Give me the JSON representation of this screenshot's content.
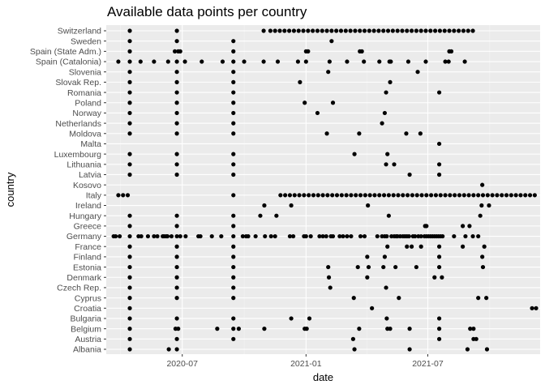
{
  "chart_data": {
    "type": "scatter",
    "title": "Available data points per country",
    "xlabel": "date",
    "ylabel": "country",
    "x_ticks": [
      "2020-07-01",
      "2021-01-01",
      "2021-07-01"
    ],
    "x_tick_labels": [
      "2020-07",
      "2021-01",
      "2021-07"
    ],
    "xlim": [
      "2020-03-10",
      "2021-12-15"
    ],
    "grid": true,
    "legend": "none",
    "categories": [
      "Switzerland",
      "Sweden",
      "Spain (State Adm.)",
      "Spain (Catalonia)",
      "Slovenia",
      "Slovak Rep.",
      "Romania",
      "Poland",
      "Norway",
      "Netherlands",
      "Moldova",
      "Malta",
      "Luxembourg",
      "Lithuania",
      "Latvia",
      "Kosovo",
      "Italy",
      "Ireland",
      "Hungary",
      "Greece",
      "Germany",
      "France",
      "Finland",
      "Estonia",
      "Denmark",
      "Czech Rep.",
      "Cyprus",
      "Croatia",
      "Bulgaria",
      "Belgium",
      "Austria",
      "Albania"
    ],
    "points": {
      "Switzerland": {
        "dates": [
          "2020-04-14",
          "2020-06-23",
          "2020-10-30"
        ],
        "weekly": {
          "start": "2020-11-09",
          "end": "2021-09-06"
        }
      },
      "Sweden": {
        "dates": [
          "2020-04-14",
          "2020-06-23",
          "2020-09-15",
          "2021-02-08"
        ]
      },
      "Spain (State Adm.)": {
        "dates": [
          "2020-04-14",
          "2020-06-20",
          "2020-06-25",
          "2020-06-28",
          "2020-09-15",
          "2021-01-01",
          "2021-01-04",
          "2021-03-22",
          "2021-03-25",
          "2021-08-02",
          "2021-08-05"
        ]
      },
      "Spain (Catalonia)": {
        "dates": [
          "2020-03-28",
          "2020-04-14",
          "2020-04-30",
          "2020-05-20",
          "2020-06-10",
          "2020-06-23",
          "2020-07-05",
          "2020-07-30",
          "2020-08-30",
          "2020-09-15",
          "2020-10-01",
          "2020-10-30",
          "2020-11-20",
          "2020-12-20",
          "2021-01-01",
          "2021-02-05",
          "2021-03-03",
          "2021-03-28",
          "2021-04-20",
          "2021-05-05",
          "2021-05-07",
          "2021-06-02",
          "2021-06-28",
          "2021-07-27",
          "2021-08-01",
          "2021-08-25"
        ]
      },
      "Slovenia": {
        "dates": [
          "2020-04-14",
          "2020-06-23",
          "2020-09-15",
          "2021-02-03",
          "2021-06-16"
        ]
      },
      "Slovak Rep.": {
        "dates": [
          "2020-04-14",
          "2020-06-23",
          "2020-09-15",
          "2020-12-23",
          "2021-05-06"
        ]
      },
      "Romania": {
        "dates": [
          "2020-04-14",
          "2020-06-23",
          "2020-09-15",
          "2021-04-30",
          "2021-07-18"
        ]
      },
      "Poland": {
        "dates": [
          "2020-04-14",
          "2020-06-23",
          "2020-09-15",
          "2020-12-30",
          "2021-02-10"
        ]
      },
      "Norway": {
        "dates": [
          "2020-04-14",
          "2020-06-23",
          "2020-09-15",
          "2021-01-18",
          "2021-04-28"
        ]
      },
      "Netherlands": {
        "dates": [
          "2020-04-14",
          "2020-06-23",
          "2020-09-15",
          "2021-04-24"
        ]
      },
      "Moldova": {
        "dates": [
          "2020-04-14",
          "2020-06-23",
          "2020-09-15",
          "2021-02-01",
          "2021-03-21",
          "2021-05-30",
          "2021-06-20"
        ]
      },
      "Malta": {
        "dates": [
          "2021-07-18"
        ]
      },
      "Luxembourg": {
        "dates": [
          "2020-04-14",
          "2020-06-23",
          "2020-09-15",
          "2021-03-14",
          "2021-05-02"
        ]
      },
      "Lithuania": {
        "dates": [
          "2020-04-14",
          "2020-06-23",
          "2020-09-15",
          "2021-04-30",
          "2021-05-12",
          "2021-07-18"
        ]
      },
      "Latvia": {
        "dates": [
          "2020-04-14",
          "2020-06-23",
          "2020-09-15",
          "2021-06-04",
          "2021-07-18"
        ]
      },
      "Kosovo": {
        "dates": [
          "2021-09-20"
        ]
      },
      "Italy": {
        "dates": [
          "2020-03-28",
          "2020-04-04",
          "2020-04-11",
          "2020-09-15"
        ],
        "weekly": [
          {
            "start": "2020-11-24",
            "end": "2020-12-29"
          },
          {
            "start": "2021-01-05",
            "end": "2021-12-07"
          }
        ]
      },
      "Ireland": {
        "dates": [
          "2020-10-31",
          "2020-12-10",
          "2021-04-03",
          "2021-09-19",
          "2021-09-30"
        ]
      },
      "Hungary": {
        "dates": [
          "2020-04-14",
          "2020-06-23",
          "2020-09-15",
          "2020-10-25",
          "2020-11-18",
          "2021-05-04",
          "2021-09-17"
        ]
      },
      "Greece": {
        "dates": [
          "2020-04-14",
          "2020-06-23",
          "2020-09-15",
          "2021-06-27",
          "2021-06-29",
          "2021-08-22",
          "2021-09-01"
        ]
      },
      "Germany": {
        "dates": [
          "2020-03-21",
          "2020-03-24",
          "2020-03-30",
          "2020-04-14",
          "2020-04-27",
          "2020-05-01",
          "2020-05-11",
          "2020-05-20",
          "2020-05-25",
          "2020-06-02",
          "2020-06-04",
          "2020-06-07",
          "2020-06-09",
          "2020-06-15",
          "2020-06-23",
          "2020-06-28",
          "2020-07-06",
          "2020-07-25",
          "2020-07-28",
          "2020-08-14",
          "2020-08-28",
          "2020-09-15",
          "2020-09-29",
          "2020-10-04",
          "2020-10-07",
          "2020-10-18",
          "2020-11-01",
          "2020-11-10",
          "2020-11-16",
          "2020-12-08",
          "2020-12-13",
          "2020-12-29",
          "2021-01-01",
          "2021-01-08",
          "2021-01-21",
          "2021-01-26",
          "2021-01-31",
          "2021-02-07",
          "2021-02-10",
          "2021-02-20",
          "2021-02-25",
          "2021-03-03",
          "2021-03-09",
          "2021-03-23",
          "2021-03-29",
          "2021-04-17",
          "2021-04-24",
          "2021-04-28",
          "2021-05-01",
          "2021-05-08",
          "2021-05-12",
          "2021-05-15",
          "2021-05-17",
          "2021-05-21",
          "2021-05-25",
          "2021-05-28",
          "2021-05-31",
          "2021-06-03",
          "2021-06-09",
          "2021-06-12",
          "2021-06-17",
          "2021-06-21",
          "2021-06-26",
          "2021-06-29",
          "2021-07-02",
          "2021-07-05",
          "2021-07-08",
          "2021-07-11",
          "2021-07-14",
          "2021-07-17",
          "2021-07-20",
          "2021-07-23",
          "2021-08-09",
          "2021-08-26",
          "2021-09-06",
          "2021-09-14"
        ]
      },
      "France": {
        "dates": [
          "2020-04-14",
          "2020-06-23",
          "2020-09-15",
          "2021-05-02",
          "2021-05-31",
          "2021-06-07",
          "2021-06-21",
          "2021-07-18",
          "2021-08-22",
          "2021-09-23"
        ]
      },
      "Finland": {
        "dates": [
          "2020-04-14",
          "2020-06-23",
          "2020-09-15",
          "2021-04-02",
          "2021-04-28",
          "2021-07-18",
          "2021-09-20"
        ]
      },
      "Estonia": {
        "dates": [
          "2020-04-14",
          "2020-06-23",
          "2020-09-15",
          "2021-02-03",
          "2021-03-19",
          "2021-04-04",
          "2021-04-26",
          "2021-05-14",
          "2021-06-14",
          "2021-07-18",
          "2021-09-21"
        ]
      },
      "Denmark": {
        "dates": [
          "2020-04-14",
          "2020-06-23",
          "2020-09-15",
          "2021-02-04",
          "2021-04-02",
          "2021-07-11",
          "2021-07-22"
        ]
      },
      "Czech Rep.": {
        "dates": [
          "2020-04-14",
          "2020-06-23",
          "2020-09-15",
          "2021-02-06",
          "2021-04-30"
        ]
      },
      "Cyprus": {
        "dates": [
          "2020-04-14",
          "2020-06-23",
          "2020-09-15",
          "2021-03-13",
          "2021-05-19",
          "2021-09-14",
          "2021-09-26"
        ]
      },
      "Croatia": {
        "dates": [
          "2020-04-14",
          "2021-04-09",
          "2021-12-03",
          "2021-12-09"
        ]
      },
      "Bulgaria": {
        "dates": [
          "2020-04-14",
          "2020-06-23",
          "2020-09-15",
          "2020-12-10",
          "2021-01-06",
          "2021-05-01",
          "2021-07-18"
        ]
      },
      "Belgium": {
        "dates": [
          "2020-04-14",
          "2020-06-21",
          "2020-06-25",
          "2020-08-22",
          "2020-09-15",
          "2020-09-23",
          "2020-10-31",
          "2020-12-30",
          "2021-01-02",
          "2021-03-21",
          "2021-05-02",
          "2021-05-06",
          "2021-06-04",
          "2021-07-18",
          "2021-09-02",
          "2021-09-07"
        ]
      },
      "Austria": {
        "dates": [
          "2020-04-14",
          "2020-06-23",
          "2020-09-15",
          "2021-03-12",
          "2021-07-18",
          "2021-09-07",
          "2021-09-11"
        ]
      },
      "Albania": {
        "dates": [
          "2020-04-14",
          "2020-06-11",
          "2020-06-23",
          "2021-03-14",
          "2021-06-04",
          "2021-08-29",
          "2021-09-27"
        ]
      }
    }
  }
}
